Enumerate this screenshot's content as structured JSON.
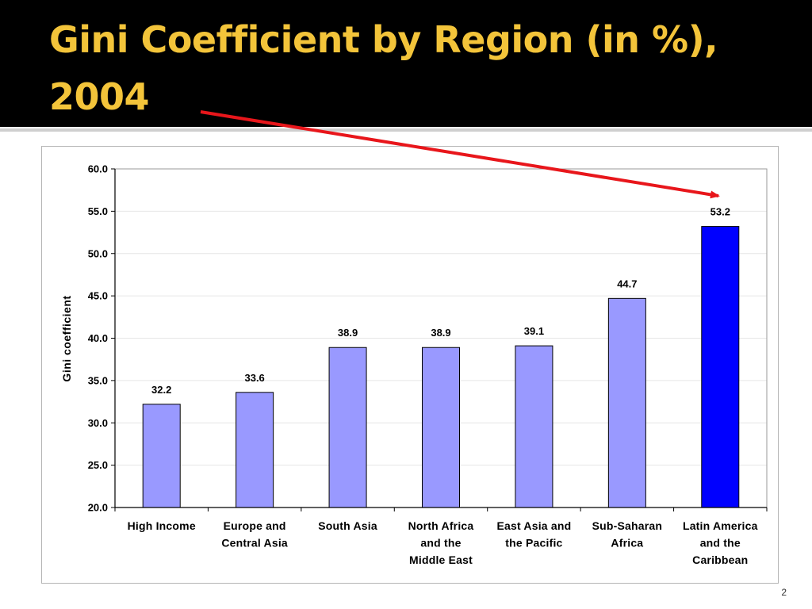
{
  "slide": {
    "title_line1": "Gini Coefficient by Region (in %),",
    "title_line2": "2004",
    "page_number": "2"
  },
  "colors": {
    "title_band": "#000000",
    "title_text": "#f3c43a",
    "bar_default": "#9999ff",
    "bar_highlight": "#0000ff",
    "arrow": "#e8161b"
  },
  "chart_data": {
    "type": "bar",
    "title": "",
    "xlabel": "",
    "ylabel": "Gini coefficient",
    "ylim": [
      20.0,
      60.0
    ],
    "yticks": [
      "20.0",
      "25.0",
      "30.0",
      "35.0",
      "40.0",
      "45.0",
      "50.0",
      "55.0",
      "60.0"
    ],
    "grid": true,
    "categories": [
      [
        "High Income"
      ],
      [
        "Europe and",
        "Central Asia"
      ],
      [
        "South Asia"
      ],
      [
        "North Africa",
        "and the",
        "Middle East"
      ],
      [
        "East Asia and",
        "the Pacific"
      ],
      [
        "Sub-Saharan",
        "Africa"
      ],
      [
        "Latin America",
        "and the",
        "Caribbean"
      ]
    ],
    "values": [
      32.2,
      33.6,
      38.9,
      38.9,
      39.1,
      44.7,
      53.2
    ],
    "data_labels": [
      "32.2",
      "33.6",
      "38.9",
      "38.9",
      "39.1",
      "44.7",
      "53.2"
    ],
    "highlighted_category_index": 6,
    "annotation": "red arrow from title to Latin America and the Caribbean bar"
  }
}
